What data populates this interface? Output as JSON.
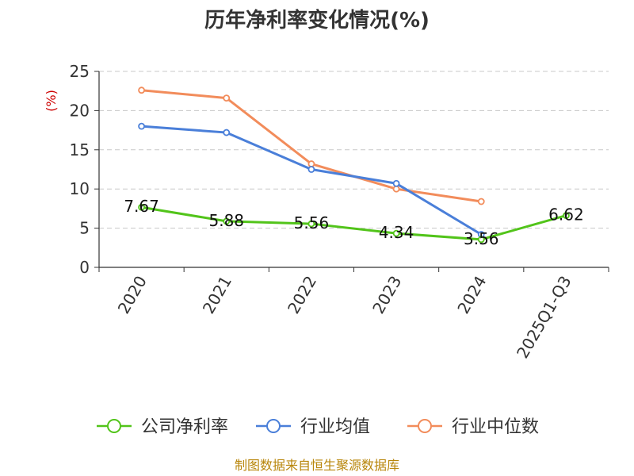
{
  "chart_data": {
    "type": "line",
    "title": "历年净利率变化情况(%)",
    "ylabel": "(%)",
    "xlabel": "",
    "categories": [
      "2020",
      "2021",
      "2022",
      "2023",
      "2024",
      "2025Q1-Q3"
    ],
    "ylim": [
      0,
      25
    ],
    "yticks": [
      0,
      5,
      10,
      15,
      20,
      25
    ],
    "grid": "horizontal-dashed",
    "legend_position": "bottom",
    "series": [
      {
        "name": "公司净利率",
        "color": "#52c41a",
        "show_labels": true,
        "values": [
          7.67,
          5.88,
          5.56,
          4.34,
          3.56,
          6.62
        ],
        "labels": [
          "7.67",
          "5.88",
          "5.56",
          "4.34",
          "3.56",
          "6.62"
        ]
      },
      {
        "name": "行业均值",
        "color": "#4a7fd9",
        "show_labels": false,
        "values": [
          18.0,
          17.2,
          12.5,
          10.7,
          4.2,
          null
        ]
      },
      {
        "name": "行业中位数",
        "color": "#f28c5b",
        "show_labels": false,
        "values": [
          22.6,
          21.6,
          13.2,
          10.0,
          8.4,
          null
        ]
      }
    ],
    "source": "制图数据来自恒生聚源数据库"
  }
}
